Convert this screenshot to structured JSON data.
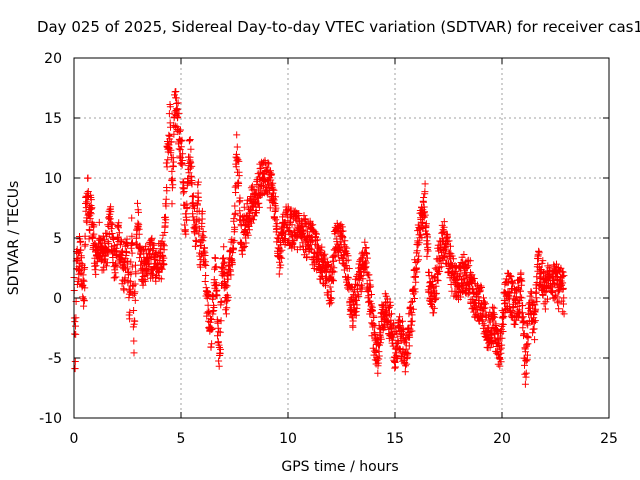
{
  "chart_data": {
    "type": "scatter",
    "title": "Day 025 of 2025, Sidereal Day-to-day VTEC variation (SDTVAR) for receiver cas1",
    "xlabel": "GPS time / hours",
    "ylabel": "SDTVAR / TECUs",
    "xlim": [
      0,
      25
    ],
    "ylim": [
      -10,
      20
    ],
    "xticks": [
      0,
      5,
      10,
      15,
      20,
      25
    ],
    "yticks": [
      -10,
      -5,
      0,
      5,
      10,
      15,
      20
    ],
    "grid": true,
    "marker": "+",
    "color": "#ff0000",
    "series": [
      {
        "name": "SDTVAR",
        "profile_x": [
          0.0,
          0.05,
          0.12,
          0.2,
          0.3,
          0.4,
          0.45,
          0.5,
          0.55,
          0.6,
          0.65,
          0.7,
          0.8,
          0.9,
          1.0,
          1.1,
          1.2,
          1.3,
          1.5,
          1.7,
          1.9,
          2.1,
          2.3,
          2.5,
          2.6,
          2.7,
          2.8,
          2.9,
          3.0,
          3.1,
          3.3,
          3.5,
          3.7,
          4.0,
          4.2,
          4.4,
          4.5,
          4.6,
          4.7,
          4.8,
          4.9,
          5.0,
          5.1,
          5.2,
          5.3,
          5.4,
          5.5,
          5.6,
          5.7,
          5.8,
          5.9,
          6.0,
          6.2,
          6.4,
          6.6,
          6.8,
          6.9,
          7.0,
          7.1,
          7.3,
          7.5,
          7.6,
          7.7,
          7.8,
          8.8,
          9.0,
          9.2,
          9.4,
          9.6,
          9.8,
          10.0,
          10.5,
          11.0,
          11.5,
          12.0,
          12.2,
          12.5,
          12.8,
          13.0,
          13.3,
          13.6,
          14.0,
          14.2,
          14.4,
          14.6,
          14.8,
          15.0,
          15.2,
          15.5,
          15.8,
          16.0,
          16.2,
          16.4,
          16.6,
          16.8,
          17.0,
          17.3,
          17.6,
          17.9,
          18.2,
          18.5,
          18.8,
          19.0,
          19.3,
          19.6,
          19.9,
          20.1,
          20.3,
          20.6,
          20.9,
          21.1,
          21.3,
          21.5,
          21.7,
          22.0,
          22.3,
          22.6,
          22.9
        ],
        "profile_y": [
          0.5,
          -5.0,
          3.0,
          2.5,
          4.0,
          1.0,
          0.0,
          1.5,
          8.5,
          7.0,
          9.0,
          6.0,
          8.0,
          5.0,
          3.5,
          4.0,
          5.0,
          3.0,
          4.0,
          6.5,
          3.0,
          5.0,
          2.0,
          4.0,
          -2.0,
          6.0,
          -3.5,
          4.0,
          7.0,
          3.0,
          2.5,
          3.5,
          3.0,
          3.0,
          4.0,
          13.5,
          14.5,
          8.0,
          16.0,
          15.5,
          14.0,
          12.5,
          10.0,
          6.0,
          9.0,
          13.0,
          10.0,
          7.0,
          4.0,
          9.0,
          3.0,
          6.0,
          0.0,
          -3.0,
          2.5,
          -5.5,
          1.0,
          3.0,
          0.0,
          3.0,
          6.0,
          12.0,
          10.0,
          5.0,
          10.0,
          10.5,
          9.0,
          7.0,
          3.5,
          6.0,
          6.0,
          5.5,
          5.0,
          3.0,
          1.0,
          4.5,
          5.0,
          2.0,
          -1.0,
          1.0,
          3.5,
          -3.0,
          -4.5,
          -1.5,
          -1.0,
          -2.0,
          -4.5,
          -3.0,
          -4.5,
          -1.0,
          3.0,
          6.0,
          8.0,
          1.0,
          0.0,
          3.0,
          5.0,
          2.5,
          1.0,
          2.0,
          1.5,
          -0.5,
          0.0,
          -3.0,
          -2.0,
          -5.0,
          0.0,
          1.0,
          -1.0,
          1.0,
          -6.0,
          0.0,
          -2.5,
          3.0,
          0.5,
          2.0,
          1.0,
          0.5
        ],
        "spread": 1.6,
        "point_count": 2600
      }
    ]
  }
}
